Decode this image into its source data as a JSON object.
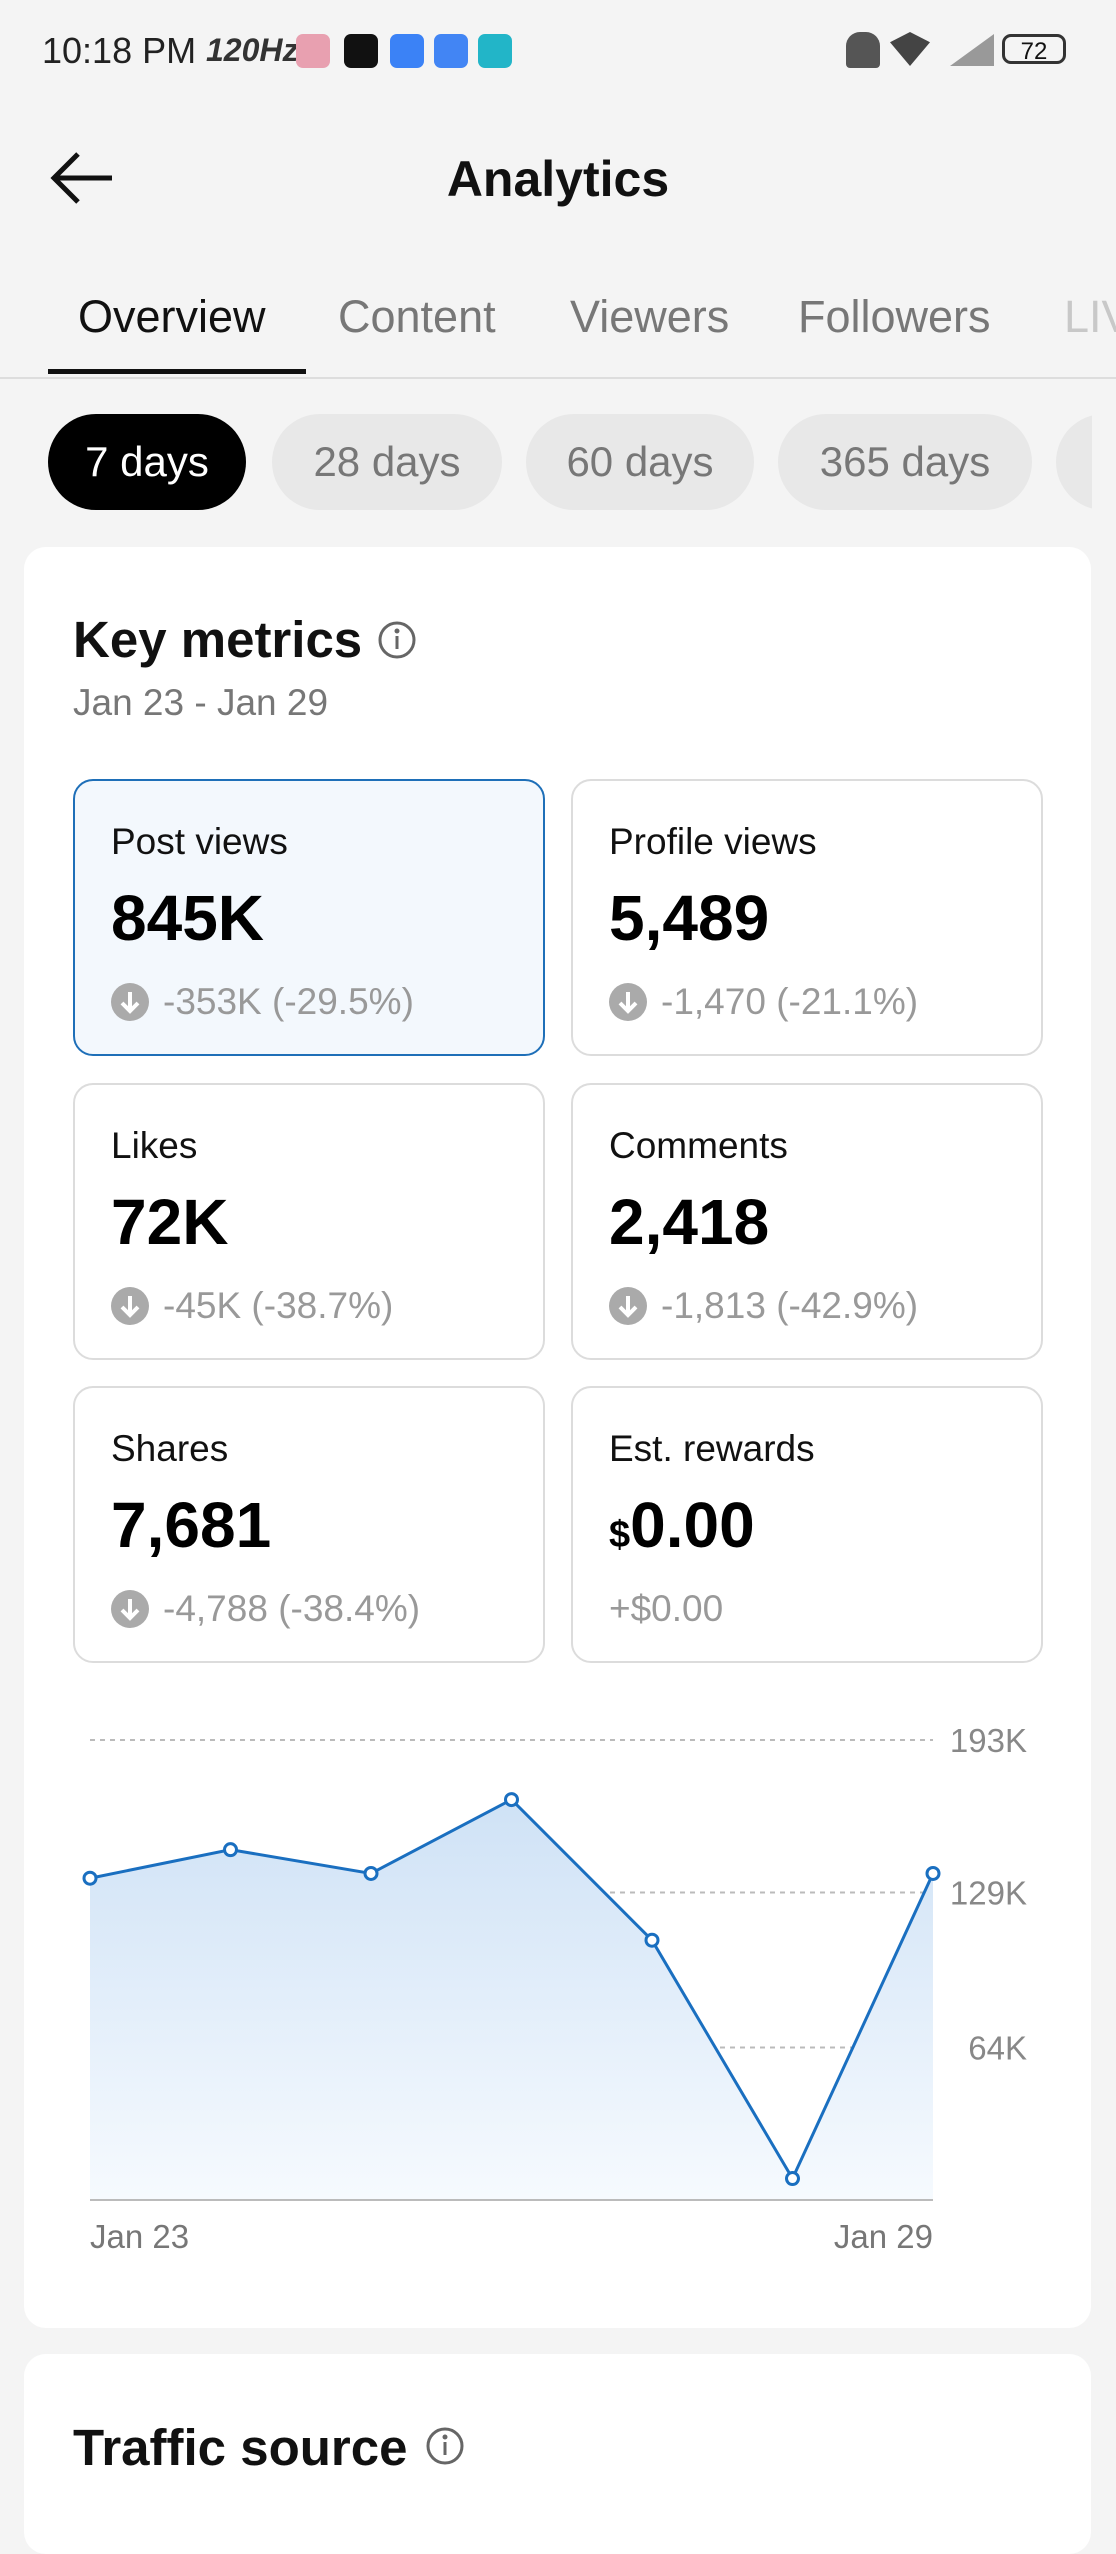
{
  "status_bar": {
    "time": "10:18 PM",
    "refresh_rate": "120Hz",
    "battery": "72"
  },
  "header": {
    "title": "Analytics"
  },
  "tabs": [
    "Overview",
    "Content",
    "Viewers",
    "Followers",
    "LIVE"
  ],
  "periods": [
    "7 days",
    "28 days",
    "60 days",
    "365 days"
  ],
  "key_metrics": {
    "title": "Key metrics",
    "date_range": "Jan 23 - Jan 29",
    "metrics": [
      {
        "label": "Post views",
        "value": "845K",
        "change": "-353K (-29.5%)"
      },
      {
        "label": "Profile views",
        "value": "5,489",
        "change": "-1,470 (-21.1%)"
      },
      {
        "label": "Likes",
        "value": "72K",
        "change": "-45K (-38.7%)"
      },
      {
        "label": "Comments",
        "value": "2,418",
        "change": "-1,813 (-42.9%)"
      },
      {
        "label": "Shares",
        "value": "7,681",
        "change": "-4,788 (-38.4%)"
      },
      {
        "label": "Est. rewards",
        "currency": "$",
        "value": "0.00",
        "change": "+$0.00"
      }
    ]
  },
  "chart_data": {
    "type": "line",
    "categories": [
      "Jan 23",
      null,
      null,
      null,
      null,
      null,
      "Jan 29"
    ],
    "series": [
      {
        "color": "#1a6fc0",
        "values": [
          135000,
          147000,
          137000,
          168000,
          109000,
          9000,
          137000
        ]
      }
    ],
    "ylim": [
      0,
      193000
    ],
    "yticks": [
      {
        "value": 64000,
        "label": "64K"
      },
      {
        "value": 129000,
        "label": "129K"
      },
      {
        "value": 193000,
        "label": "193K"
      }
    ],
    "grid": true
  },
  "traffic_source": {
    "title": "Traffic source"
  }
}
